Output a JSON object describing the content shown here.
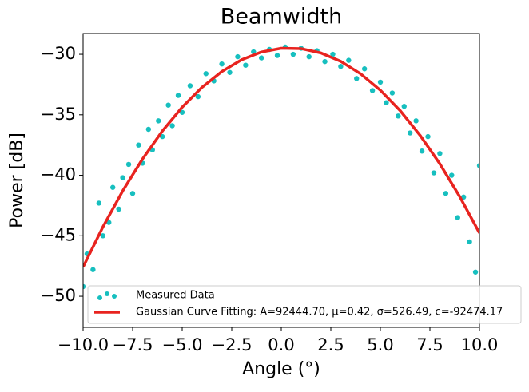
{
  "chart_data": {
    "type": "scatter-fit",
    "title": "Beamwidth",
    "x_label": "Angle (°)",
    "y_label": "Power [dB]",
    "xlim": [
      -10,
      10
    ],
    "ylim": [
      -52.57,
      -28.28
    ],
    "xticks": [
      {
        "value": -10,
        "label": "−10.0"
      },
      {
        "value": -7.5,
        "label": "−7.5"
      },
      {
        "value": -5,
        "label": "−5.0"
      },
      {
        "value": -2.5,
        "label": "−2.5"
      },
      {
        "value": 0,
        "label": "0.0"
      },
      {
        "value": 2.5,
        "label": "2.5"
      },
      {
        "value": 5,
        "label": "5.0"
      },
      {
        "value": 7.5,
        "label": "7.5"
      },
      {
        "value": 10,
        "label": "10.0"
      }
    ],
    "yticks": [
      {
        "value": -30,
        "label": "−30"
      },
      {
        "value": -35,
        "label": "−35"
      },
      {
        "value": -40,
        "label": "−40"
      },
      {
        "value": -45,
        "label": "−45"
      },
      {
        "value": -50,
        "label": "−50"
      }
    ],
    "series": [
      {
        "name": "Measured Data",
        "kind": "scatter",
        "color": "#17bfbf",
        "x": [
          -10,
          -9.8,
          -9.5,
          -9.2,
          -9,
          -8.7,
          -8.5,
          -8.2,
          -8,
          -7.7,
          -7.5,
          -7.2,
          -7,
          -6.7,
          -6.5,
          -6.2,
          -6,
          -5.7,
          -5.5,
          -5.2,
          -5,
          -4.6,
          -4.2,
          -3.8,
          -3.4,
          -3,
          -2.6,
          -2.2,
          -1.8,
          -1.4,
          -1,
          -0.6,
          -0.2,
          0.2,
          0.6,
          1,
          1.4,
          1.8,
          2.2,
          2.6,
          3,
          3.4,
          3.8,
          4.2,
          4.6,
          5,
          5.3,
          5.6,
          5.9,
          6.2,
          6.5,
          6.8,
          7.1,
          7.4,
          7.7,
          8,
          8.3,
          8.6,
          8.9,
          9.2,
          9.5,
          9.8,
          10
        ],
        "values": [
          -49.2,
          -46.5,
          -47.8,
          -42.3,
          -45.0,
          -43.9,
          -41.0,
          -42.8,
          -40.2,
          -39.1,
          -41.5,
          -37.5,
          -39.0,
          -36.2,
          -37.9,
          -35.5,
          -36.8,
          -34.2,
          -35.9,
          -33.4,
          -34.8,
          -32.6,
          -33.5,
          -31.6,
          -32.2,
          -30.8,
          -31.5,
          -30.2,
          -30.9,
          -29.8,
          -30.3,
          -29.6,
          -30.1,
          -29.4,
          -30.0,
          -29.5,
          -30.2,
          -29.7,
          -30.6,
          -30.0,
          -31.0,
          -30.5,
          -32.0,
          -31.2,
          -33.0,
          -32.3,
          -34.0,
          -33.2,
          -35.1,
          -34.3,
          -36.5,
          -35.5,
          -38.0,
          -36.8,
          -39.8,
          -38.2,
          -41.5,
          -40.0,
          -43.5,
          -41.8,
          -45.5,
          -48.0,
          -39.2
        ]
      },
      {
        "name": "Gaussian Curve Fitting: A=92444.70, μ=0.42, σ=526.49, c=-92474.17",
        "kind": "line",
        "color": "#e8231f",
        "x": [
          -10,
          -9,
          -8,
          -7,
          -6,
          -5,
          -4,
          -3,
          -2,
          -1,
          0,
          1,
          2,
          3,
          4,
          5,
          6,
          7,
          8,
          9,
          10
        ],
        "values": [
          -47.58,
          -44.27,
          -41.29,
          -38.65,
          -36.34,
          -34.37,
          -32.73,
          -31.42,
          -30.45,
          -29.81,
          -29.5,
          -29.53,
          -29.89,
          -30.58,
          -31.61,
          -32.97,
          -34.66,
          -36.69,
          -39.05,
          -41.75,
          -44.77
        ]
      }
    ]
  }
}
